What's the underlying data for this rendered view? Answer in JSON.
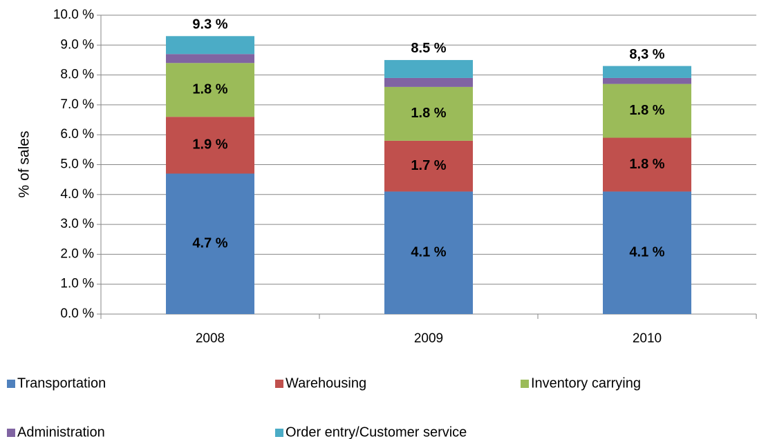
{
  "chart_data": {
    "type": "stacked_bar",
    "y_label": "% of sales",
    "categories": [
      "2008",
      "2009",
      "2010"
    ],
    "series": [
      {
        "name": "Transportation",
        "color": "#4f81bd",
        "values": [
          4.7,
          4.1,
          4.1
        ],
        "value_labels": [
          "4.7 %",
          "4.1 %",
          "4.1 %"
        ]
      },
      {
        "name": "Warehousing",
        "color": "#c0504d",
        "values": [
          1.9,
          1.7,
          1.8
        ],
        "value_labels": [
          "1.9 %",
          "1.7 %",
          "1.8 %"
        ]
      },
      {
        "name": "Inventory carrying",
        "color": "#9bbb59",
        "values": [
          1.8,
          1.8,
          1.8
        ],
        "value_labels": [
          "1.8 %",
          "1.8 %",
          "1.8 %"
        ]
      },
      {
        "name": "Administration",
        "color": "#8064a2",
        "values": [
          0.3,
          0.3,
          0.2
        ]
      },
      {
        "name": "Order entry/Customer service",
        "color": "#4bacc6",
        "values": [
          0.6,
          0.6,
          0.4
        ]
      }
    ],
    "totals": [
      9.3,
      8.5,
      8.3
    ],
    "total_labels": [
      "9.3 %",
      "8.5 %",
      "8,3 %"
    ],
    "ylim": [
      0,
      10
    ],
    "yticks": [
      {
        "value": 0,
        "label": "0.0 %"
      },
      {
        "value": 1,
        "label": "1.0 %"
      },
      {
        "value": 2,
        "label": "2.0 %"
      },
      {
        "value": 3,
        "label": "3.0 %"
      },
      {
        "value": 4,
        "label": "4.0 %"
      },
      {
        "value": 5,
        "label": "5.0 %"
      },
      {
        "value": 6,
        "label": "6.0 %"
      },
      {
        "value": 7,
        "label": "7.0 %"
      },
      {
        "value": 8,
        "label": "8.0 %"
      },
      {
        "value": 9,
        "label": "9.0 %"
      },
      {
        "value": 10,
        "label": "10.0 %"
      }
    ],
    "grid": true
  }
}
